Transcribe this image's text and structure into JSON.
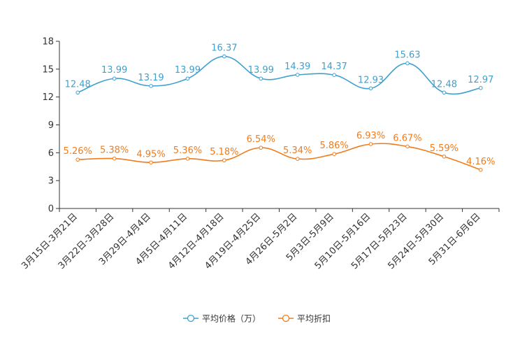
{
  "chart_data": {
    "type": "line",
    "title": "",
    "xlabel": "",
    "ylabel": "",
    "ylim": [
      0,
      18
    ],
    "yticks": [
      0,
      3,
      6,
      9,
      12,
      15,
      18
    ],
    "grid": false,
    "legend_position": "bottom",
    "categories": [
      "3月15日-3月21日",
      "3月22日-3月28日",
      "3月29日-4月4日",
      "4月5日-4月11日",
      "4月12日-4月18日",
      "4月19日-4月25日",
      "4月26日-5月2日",
      "5月3日-5月9日",
      "5月10日-5月16日",
      "5月17日-5月23日",
      "5月24日-5月30日",
      "5月31日-6月6日"
    ],
    "series": [
      {
        "name": "平均价格（万）",
        "color": "#3fa0cf",
        "values": [
          12.48,
          13.99,
          13.19,
          13.99,
          16.37,
          13.99,
          14.39,
          14.37,
          12.93,
          15.63,
          12.48,
          12.97
        ],
        "labels": [
          "12.48",
          "13.99",
          "13.19",
          "13.99",
          "16.37",
          "13.99",
          "14.39",
          "14.37",
          "12.93",
          "15.63",
          "12.48",
          "12.97"
        ]
      },
      {
        "name": "平均折扣",
        "color": "#f07c1c",
        "values": [
          5.26,
          5.38,
          4.95,
          5.36,
          5.18,
          6.54,
          5.34,
          5.86,
          6.93,
          6.67,
          5.59,
          4.16
        ],
        "labels": [
          "5.26%",
          "5.38%",
          "4.95%",
          "5.36%",
          "5.18%",
          "6.54%",
          "5.34%",
          "5.86%",
          "6.93%",
          "6.67%",
          "5.59%",
          "4.16%"
        ]
      }
    ]
  }
}
